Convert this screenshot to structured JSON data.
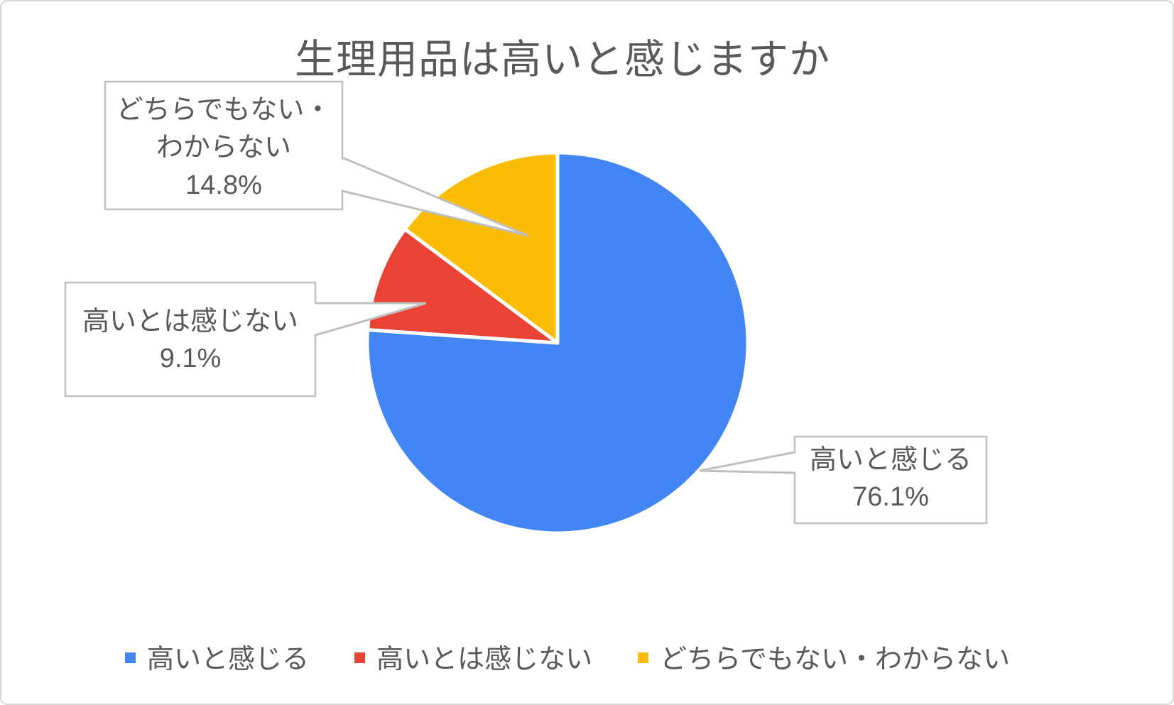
{
  "chart_data": {
    "type": "pie",
    "title": "生理用品は高いと感じますか",
    "categories": [
      "高いと感じる",
      "高いとは感じない",
      "どちらでもない・わからない"
    ],
    "values": [
      76.1,
      9.1,
      14.8
    ],
    "unit": "%",
    "colors": [
      "#4285F4",
      "#EA4335",
      "#FBBC04"
    ],
    "start_angle_deg": 0,
    "direction": "clockwise",
    "legend_position": "bottom",
    "slice_border_color": "#ffffff",
    "text_color": "#595959",
    "callout_border_color": "#bfbfbf",
    "data_labels": [
      {
        "lines": [
          "高いと感じる",
          "76.1%"
        ]
      },
      {
        "lines": [
          "高いとは感じない",
          "9.1%"
        ]
      },
      {
        "lines": [
          "どちらでもない・",
          "わからない",
          "14.8%"
        ]
      }
    ]
  }
}
